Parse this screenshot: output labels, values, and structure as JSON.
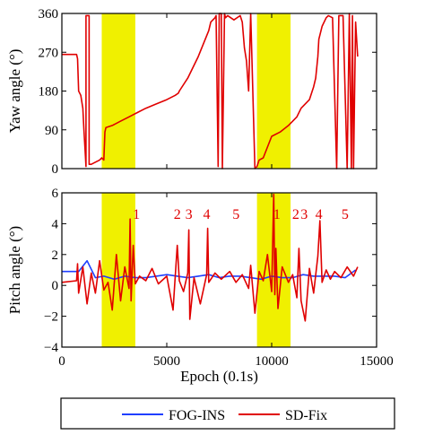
{
  "chart_data": [
    {
      "type": "line",
      "panel": "top",
      "title": "",
      "xlabel": "",
      "ylabel": "Yaw angle (°)",
      "xlim": [
        0,
        15000
      ],
      "ylim": [
        0,
        360
      ],
      "xticks": [
        0,
        5000,
        10000,
        15000
      ],
      "yticks": [
        0,
        90,
        180,
        270,
        360
      ],
      "ytick_labels": [
        "0",
        "90",
        "180",
        "270",
        "360"
      ],
      "grid": false,
      "highlight_bands": [
        [
          1900,
          3500
        ],
        [
          9300,
          10900
        ]
      ],
      "highlight_color": "#f0f000",
      "series": [
        {
          "name": "SD-Fix",
          "color": "#e00000",
          "x": [
            0,
            700,
            750,
            800,
            900,
            1000,
            1050,
            1100,
            1150,
            1150,
            1200,
            1300,
            1300,
            1400,
            1600,
            1800,
            1900,
            2000,
            2050,
            2100,
            2400,
            2800,
            3200,
            3600,
            4000,
            4500,
            5000,
            5200,
            5400,
            5550,
            5600,
            6000,
            6500,
            7000,
            7100,
            7300,
            7350,
            7450,
            7500,
            7600,
            7650,
            7750,
            7800,
            7900,
            8200,
            8500,
            8600,
            8700,
            8800,
            8900,
            9000,
            9200,
            9300,
            9400,
            9600,
            10000,
            10400,
            10800,
            11200,
            11400,
            11600,
            11800,
            12000,
            12100,
            12200,
            12250,
            12400,
            12600,
            12700,
            12900,
            13100,
            13200,
            13400,
            13600,
            13700,
            13800,
            13850,
            13900,
            14000,
            14100
          ],
          "values": [
            265,
            265,
            255,
            180,
            170,
            140,
            90,
            50,
            5,
            355,
            355,
            355,
            10,
            10,
            15,
            20,
            25,
            20,
            85,
            95,
            100,
            110,
            120,
            130,
            140,
            150,
            160,
            165,
            170,
            175,
            180,
            210,
            260,
            320,
            340,
            350,
            355,
            5,
            360,
            360,
            0,
            360,
            350,
            355,
            345,
            355,
            340,
            280,
            250,
            180,
            360,
            0,
            5,
            20,
            25,
            75,
            85,
            100,
            120,
            140,
            150,
            160,
            190,
            210,
            260,
            300,
            330,
            350,
            355,
            350,
            0,
            355,
            355,
            0,
            360,
            0,
            355,
            0,
            340,
            260
          ]
        }
      ]
    },
    {
      "type": "line",
      "panel": "bottom",
      "title": "",
      "xlabel": "Epoch (0.1s)",
      "ylabel": "Pitch angle (°)",
      "xlim": [
        0,
        15000
      ],
      "ylim": [
        -4,
        6
      ],
      "xticks": [
        0,
        5000,
        10000,
        15000
      ],
      "yticks": [
        -4,
        -2,
        0,
        2,
        4,
        6
      ],
      "ytick_labels": [
        "−4",
        "−2",
        "0",
        "2",
        "4",
        "6"
      ],
      "grid": false,
      "highlight_bands": [
        [
          1900,
          3500
        ],
        [
          9300,
          10900
        ]
      ],
      "highlight_color": "#f0f000",
      "annotations": [
        {
          "text": "1",
          "x": 3550,
          "y": 4.6
        },
        {
          "text": "2",
          "x": 5500,
          "y": 4.6
        },
        {
          "text": "3",
          "x": 6050,
          "y": 4.6
        },
        {
          "text": "4",
          "x": 6900,
          "y": 4.6
        },
        {
          "text": "5",
          "x": 8300,
          "y": 4.6
        },
        {
          "text": "1",
          "x": 10250,
          "y": 4.6
        },
        {
          "text": "2",
          "x": 11150,
          "y": 4.6
        },
        {
          "text": "3",
          "x": 11550,
          "y": 4.6
        },
        {
          "text": "4",
          "x": 12250,
          "y": 4.6
        },
        {
          "text": "5",
          "x": 13500,
          "y": 4.6
        }
      ],
      "series": [
        {
          "name": "FOG-INS",
          "color": "#1f3fff",
          "x": [
            0,
            800,
            1200,
            1600,
            2000,
            2500,
            3000,
            3500,
            4000,
            4500,
            5000,
            5500,
            6000,
            6500,
            7000,
            7500,
            8000,
            8500,
            9000,
            9500,
            10000,
            10500,
            11000,
            11500,
            12000,
            12500,
            13000,
            13500,
            14000
          ],
          "values": [
            0.9,
            0.9,
            1.6,
            0.5,
            0.6,
            0.4,
            0.6,
            0.5,
            0.5,
            0.6,
            0.7,
            0.6,
            0.5,
            0.6,
            0.7,
            0.5,
            0.6,
            0.6,
            0.5,
            0.4,
            0.6,
            0.5,
            0.5,
            0.7,
            0.6,
            0.6,
            0.6,
            0.5,
            1.0
          ]
        },
        {
          "name": "SD-Fix",
          "color": "#e00000",
          "x": [
            0,
            700,
            750,
            800,
            1000,
            1200,
            1400,
            1600,
            1800,
            2000,
            2200,
            2400,
            2600,
            2800,
            3000,
            3200,
            3250,
            3300,
            3400,
            3500,
            3700,
            4000,
            4300,
            4600,
            5000,
            5300,
            5500,
            5600,
            5800,
            6000,
            6050,
            6100,
            6300,
            6600,
            6900,
            6950,
            7000,
            7300,
            7600,
            8000,
            8300,
            8600,
            8900,
            9000,
            9200,
            9400,
            9600,
            9800,
            10000,
            10100,
            10150,
            10200,
            10300,
            10500,
            10800,
            11000,
            11200,
            11300,
            11400,
            11600,
            11800,
            12000,
            12200,
            12300,
            12400,
            12600,
            12800,
            13000,
            13300,
            13600,
            13900,
            14100
          ],
          "values": [
            0.2,
            0.3,
            1.4,
            -0.5,
            1.2,
            -1.2,
            0.8,
            -0.5,
            1.6,
            -0.3,
            0.2,
            -1.6,
            2.0,
            -1.0,
            1.2,
            -0.2,
            4.3,
            -1.0,
            2.6,
            0.1,
            0.6,
            0.3,
            1.1,
            0.1,
            0.6,
            -1.6,
            2.6,
            0.3,
            -0.4,
            0.8,
            3.6,
            -2.2,
            0.5,
            -1.2,
            0.7,
            3.7,
            0.2,
            0.8,
            0.4,
            0.9,
            0.2,
            0.7,
            -0.2,
            1.3,
            -1.8,
            0.9,
            0.3,
            2.0,
            -0.4,
            5.9,
            -0.6,
            2.4,
            -1.5,
            1.2,
            0.2,
            0.7,
            -0.8,
            2.4,
            -1.0,
            -2.3,
            1.1,
            -0.5,
            1.9,
            4.2,
            0.2,
            1.0,
            0.4,
            0.9,
            0.5,
            1.2,
            0.6,
            1.2
          ]
        }
      ]
    }
  ],
  "legend": {
    "placement": "bottom",
    "entries": [
      {
        "label": "FOG-INS",
        "color": "#1f3fff"
      },
      {
        "label": "SD-Fix",
        "color": "#e00000"
      }
    ]
  }
}
